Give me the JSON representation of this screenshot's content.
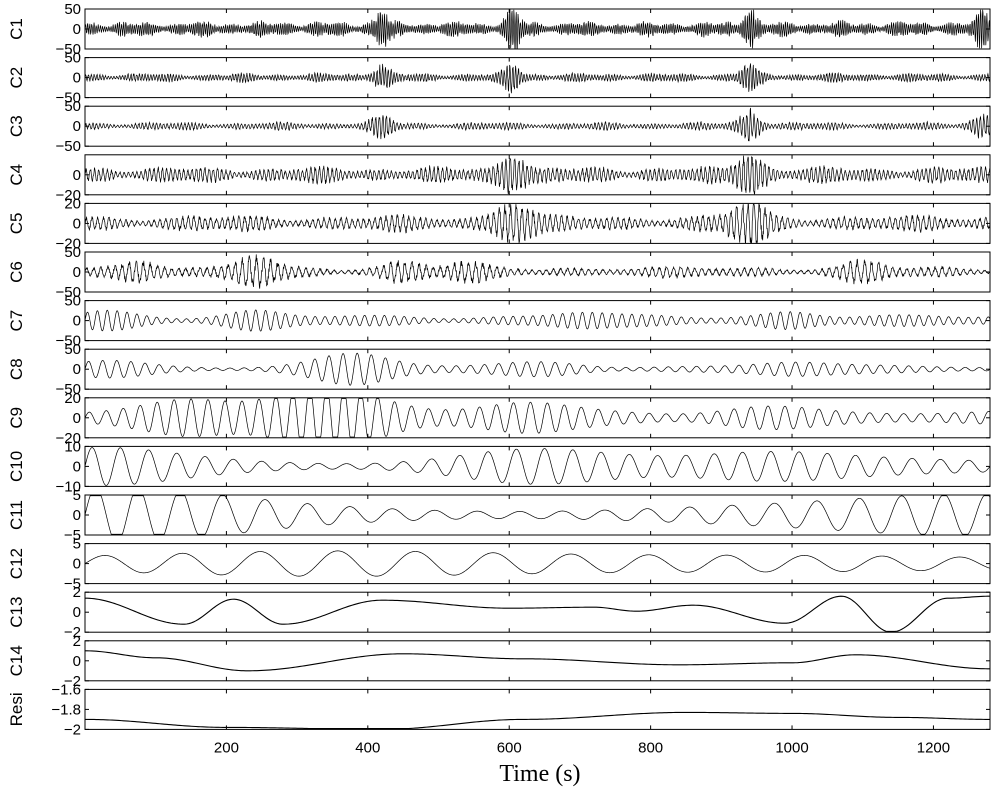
{
  "chart_data": {
    "type": "line",
    "xlabel": "Time (s)",
    "xlim": [
      0,
      1280
    ],
    "xticks": [
      200,
      400,
      600,
      800,
      1000,
      1200
    ],
    "grid": false,
    "line_color": "#000000",
    "panels": [
      {
        "name": "C1",
        "ylim": [
          -50,
          50
        ],
        "yticks": [
          50,
          0,
          -50
        ],
        "period_s": 3,
        "amplitude": 14,
        "style": "bursty",
        "bursts": [
          [
            420,
            30
          ],
          [
            605,
            40
          ],
          [
            940,
            35
          ],
          [
            1270,
            30
          ]
        ]
      },
      {
        "name": "C2",
        "ylim": [
          -50,
          50
        ],
        "yticks": [
          50,
          0,
          -50
        ],
        "period_s": 4,
        "amplitude": 8,
        "style": "bursty",
        "bursts": [
          [
            420,
            20
          ],
          [
            605,
            25
          ],
          [
            940,
            25
          ]
        ]
      },
      {
        "name": "C3",
        "ylim": [
          -50,
          50
        ],
        "yticks": [
          50,
          0,
          -50
        ],
        "period_s": 5,
        "amplitude": 7,
        "style": "bursty",
        "bursts": [
          [
            420,
            18
          ],
          [
            940,
            30
          ],
          [
            1270,
            20
          ]
        ]
      },
      {
        "name": "C4",
        "ylim": [
          -20,
          20
        ],
        "yticks": [
          0,
          -20
        ],
        "period_s": 6,
        "amplitude": 6,
        "style": "bursty",
        "bursts": [
          [
            605,
            15
          ],
          [
            940,
            16
          ]
        ]
      },
      {
        "name": "C5",
        "ylim": [
          -20,
          20
        ],
        "yticks": [
          20,
          0,
          -20
        ],
        "period_s": 8,
        "amplitude": 6,
        "style": "bursty",
        "bursts": [
          [
            605,
            14
          ],
          [
            940,
            16
          ]
        ]
      },
      {
        "name": "C6",
        "ylim": [
          -50,
          50
        ],
        "yticks": [
          50,
          0,
          -50
        ],
        "period_s": 10,
        "amplitude": 10,
        "style": "bursty",
        "bursts": [
          [
            80,
            18
          ],
          [
            240,
            25
          ],
          [
            450,
            15
          ],
          [
            540,
            12
          ],
          [
            1100,
            15
          ]
        ]
      },
      {
        "name": "C7",
        "ylim": [
          -50,
          50
        ],
        "yticks": [
          50,
          0,
          -50
        ],
        "period_s": 14,
        "amplitude": 12,
        "style": "bursty",
        "bursts": [
          [
            30,
            15
          ],
          [
            240,
            14
          ],
          [
            700,
            12
          ],
          [
            1000,
            14
          ]
        ]
      },
      {
        "name": "C8",
        "ylim": [
          -50,
          50
        ],
        "yticks": [
          50,
          0,
          -50
        ],
        "period_s": 20,
        "amplitude": 8,
        "style": "bursty",
        "bursts": [
          [
            30,
            15
          ],
          [
            380,
            32
          ],
          [
            650,
            12
          ],
          [
            1000,
            12
          ]
        ]
      },
      {
        "name": "C9",
        "ylim": [
          -20,
          20
        ],
        "yticks": [
          20,
          0,
          -20
        ],
        "period_s": 24,
        "amplitude": 6,
        "style": "bursty",
        "bursts": [
          [
            150,
            14
          ],
          [
            300,
            16
          ],
          [
            370,
            16
          ],
          [
            620,
            10
          ],
          [
            960,
            8
          ]
        ]
      },
      {
        "name": "C10",
        "ylim": [
          -10,
          10
        ],
        "yticks": [
          10,
          0,
          -10
        ],
        "period_s": 40,
        "amplitude": 3,
        "style": "bursty",
        "bursts": [
          [
            20,
            7
          ],
          [
            630,
            6
          ],
          [
            970,
            5
          ]
        ]
      },
      {
        "name": "C11",
        "ylim": [
          -5,
          5
        ],
        "yticks": [
          5,
          0,
          -5
        ],
        "period_s": 60,
        "amplitude": 2.5,
        "style": "bursty",
        "bursts": [
          [
            30,
            5
          ],
          [
            1270,
            3
          ]
        ]
      },
      {
        "name": "C12",
        "ylim": [
          -5,
          5
        ],
        "yticks": [
          5,
          0,
          -5
        ],
        "period_s": 110,
        "amplitude": 1.2,
        "style": "bursty",
        "bursts": [
          [
            340,
            2
          ],
          [
            1040,
            1.5
          ]
        ]
      },
      {
        "name": "C13",
        "ylim": [
          -2,
          2
        ],
        "yticks": [
          2,
          0,
          -2
        ],
        "period_s": 230,
        "amplitude": 0.6,
        "style": "smooth",
        "points": [
          [
            0,
            1.4
          ],
          [
            140,
            -1.2
          ],
          [
            210,
            1.3
          ],
          [
            280,
            -1.2
          ],
          [
            420,
            1.2
          ],
          [
            600,
            0.4
          ],
          [
            720,
            0.5
          ],
          [
            780,
            0.1
          ],
          [
            860,
            0.7
          ],
          [
            990,
            -1.1
          ],
          [
            1070,
            1.6
          ],
          [
            1140,
            -2.0
          ],
          [
            1220,
            1.4
          ],
          [
            1280,
            1.6
          ]
        ]
      },
      {
        "name": "C14",
        "ylim": [
          -2,
          2
        ],
        "yticks": [
          2,
          0,
          -2
        ],
        "period_s": 600,
        "amplitude": 1.2,
        "style": "smooth",
        "points": [
          [
            0,
            1.0
          ],
          [
            100,
            0.3
          ],
          [
            230,
            -1.0
          ],
          [
            450,
            0.7
          ],
          [
            620,
            0.2
          ],
          [
            840,
            -0.4
          ],
          [
            1000,
            -0.2
          ],
          [
            1090,
            0.6
          ],
          [
            1280,
            -0.8
          ]
        ]
      },
      {
        "name": "Resi",
        "ylim": [
          -2,
          -1.6
        ],
        "yticks": [
          -1.6,
          -1.8,
          -2
        ],
        "period_s": 0,
        "amplitude": 0,
        "style": "smooth",
        "points": [
          [
            0,
            -1.9
          ],
          [
            200,
            -1.98
          ],
          [
            420,
            -2.0
          ],
          [
            620,
            -1.9
          ],
          [
            850,
            -1.83
          ],
          [
            1000,
            -1.84
          ],
          [
            1150,
            -1.88
          ],
          [
            1280,
            -1.9
          ]
        ]
      }
    ]
  }
}
